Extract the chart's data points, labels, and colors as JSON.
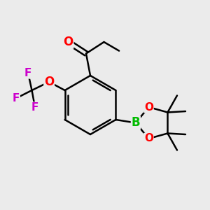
{
  "bg_color": "#ebebeb",
  "bond_color": "#000000",
  "atom_colors": {
    "O": "#ff0000",
    "F": "#cc00cc",
    "B": "#00bb00",
    "C": "#000000"
  },
  "line_width": 1.8,
  "font_size_atom": 11,
  "figsize": [
    3.0,
    3.0
  ],
  "dpi": 100
}
